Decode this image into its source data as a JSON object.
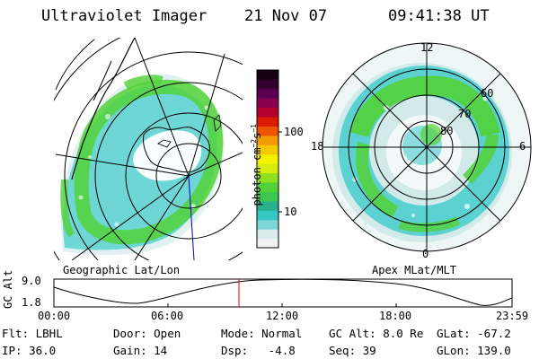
{
  "header": {
    "instrument": "Ultraviolet Imager",
    "date": "21 Nov 07",
    "time": "09:41:38 UT"
  },
  "geo_panel": {
    "label": "Geographic Lat/Lon"
  },
  "apex_panel": {
    "label": "Apex MLat/MLT",
    "mlt_labels": [
      "12",
      "18",
      "6",
      "0"
    ],
    "mlat_labels": [
      "60",
      "70",
      "80"
    ]
  },
  "colorbar": {
    "unit_label": "photon cm",
    "unit_sup1": "−2",
    "unit_mid": "s",
    "unit_sup2": "−1",
    "ticks": [
      "100",
      "10"
    ],
    "colors": [
      "#f2f2f2",
      "#d8ecec",
      "#7cd6d6",
      "#36c6c6",
      "#2ab08c",
      "#3cc850",
      "#52d238",
      "#8ee020",
      "#d6ec0c",
      "#f2f200",
      "#f6c800",
      "#f39a00",
      "#ee5400",
      "#dc1a00",
      "#b3002c",
      "#8a004e",
      "#5a0050",
      "#34002e",
      "#14000e"
    ]
  },
  "altitude_plot": {
    "ylabel": "GC Alt",
    "yticks": [
      "9.0",
      "1.8"
    ],
    "xticks": [
      "00:00",
      "06:00",
      "12:00",
      "18:00",
      "23:59"
    ],
    "marker_color": "#e00000"
  },
  "info": {
    "flt": "Flt: LBHL",
    "door": "Door: Open",
    "mode": "Mode: Normal",
    "gcalt": "GC Alt: 8.0 Re",
    "glat": "GLat: -67.2",
    "ip": "IP: 36.0",
    "gain": "Gain: 14",
    "dsp": "Dsp:   -4.8",
    "seq": "Seq: 39",
    "glon": "GLon: 139.0"
  },
  "colors": {
    "aurora_green": "#52d238",
    "aurora_cyan": "#48cccc",
    "aurora_pale": "#cfeaea"
  }
}
